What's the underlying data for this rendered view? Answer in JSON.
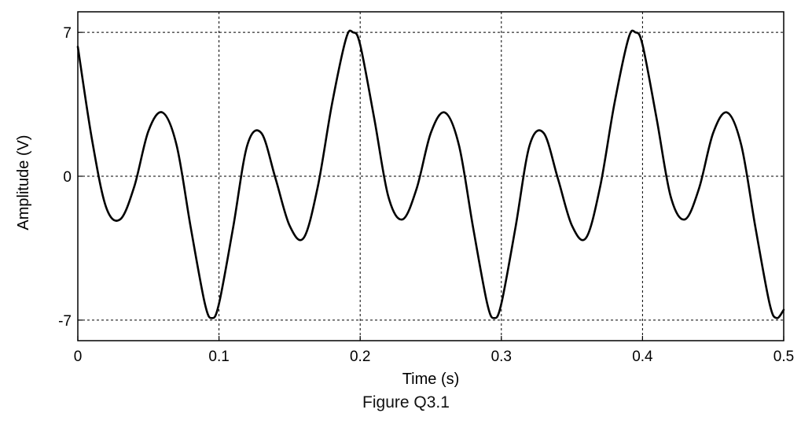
{
  "chart_data": {
    "type": "line",
    "title": "",
    "xlabel": "Time (s)",
    "ylabel": "Amplitude (V)",
    "xlim": [
      0,
      0.5
    ],
    "ylim": [
      -8,
      8
    ],
    "x_ticks": [
      0,
      0.1,
      0.2,
      0.3,
      0.4,
      0.5
    ],
    "x_tick_labels": [
      "0",
      "0.1",
      "0.2",
      "0.3",
      "0.4",
      "0.5"
    ],
    "y_ticks": [
      -7,
      0,
      7
    ],
    "y_tick_labels": [
      "-7",
      "0",
      "7"
    ],
    "grid": true,
    "legend": "none",
    "line_color": "#000000",
    "series": [
      {
        "x": [
          0,
          0.01,
          0.02,
          0.03,
          0.04,
          0.05,
          0.06,
          0.07,
          0.08,
          0.09,
          0.095,
          0.1,
          0.11,
          0.12,
          0.13,
          0.14,
          0.15,
          0.16,
          0.17,
          0.18,
          0.19,
          0.195,
          0.2,
          0.21,
          0.22,
          0.23,
          0.24,
          0.25,
          0.26,
          0.27,
          0.28,
          0.29,
          0.295,
          0.3,
          0.31,
          0.32,
          0.33,
          0.34,
          0.35,
          0.36,
          0.37,
          0.38,
          0.39,
          0.395,
          0.4,
          0.41,
          0.42,
          0.43,
          0.44,
          0.45,
          0.46,
          0.47,
          0.48,
          0.49,
          0.495,
          0.5
        ],
        "y": [
          6.3,
          1.8,
          -1.5,
          -2.1,
          -0.5,
          2.2,
          3.1,
          1.5,
          -2.5,
          -6.2,
          -6.9,
          -6.2,
          -2.5,
          1.5,
          2.1,
          -0.1,
          -2.4,
          -3.0,
          -0.5,
          3.5,
          6.7,
          7.0,
          6.4,
          2.8,
          -1.0,
          -2.1,
          -0.6,
          2.1,
          3.1,
          1.5,
          -2.5,
          -6.2,
          -6.9,
          -6.2,
          -2.5,
          1.5,
          2.1,
          -0.1,
          -2.4,
          -3.0,
          -0.5,
          3.5,
          6.7,
          7.0,
          6.4,
          2.8,
          -1.0,
          -2.1,
          -0.6,
          2.1,
          3.1,
          1.5,
          -2.5,
          -6.2,
          -6.9,
          -6.5
        ]
      }
    ]
  },
  "caption": "Figure Q3.1"
}
